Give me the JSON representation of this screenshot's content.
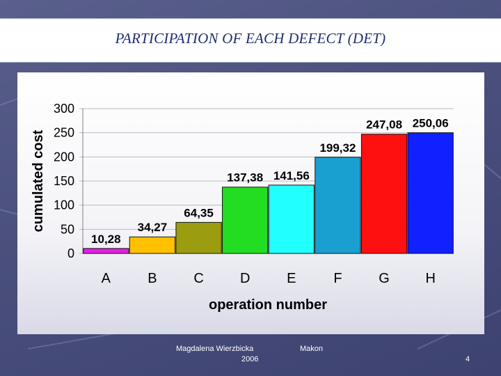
{
  "slide": {
    "title": "PARTICIPATION OF EACH DEFECT (DET)"
  },
  "footer": {
    "author": "Magdalena Wierzbicka",
    "year": "2006",
    "company": "Makon",
    "page_number": "4"
  },
  "chart_data": {
    "type": "bar",
    "xlabel": "operation number",
    "ylabel": "cumulated cost",
    "ylim": [
      0,
      300
    ],
    "yticks": [
      0,
      50,
      100,
      150,
      200,
      250,
      300
    ],
    "grid": true,
    "categories": [
      "A",
      "B",
      "C",
      "D",
      "E",
      "F",
      "G",
      "H"
    ],
    "values": [
      10.28,
      34.27,
      64.35,
      137.38,
      141.56,
      199.32,
      247.08,
      250.06
    ],
    "data_labels": [
      "10,28",
      "34,27",
      "64,35",
      "137,38",
      "141,56",
      "199,32",
      "247,08",
      "250,06"
    ],
    "colors": [
      "#e020e0",
      "#ffc000",
      "#9c9c10",
      "#22dd22",
      "#22ffff",
      "#1aa0d0",
      "#ff1010",
      "#1020ff"
    ]
  }
}
